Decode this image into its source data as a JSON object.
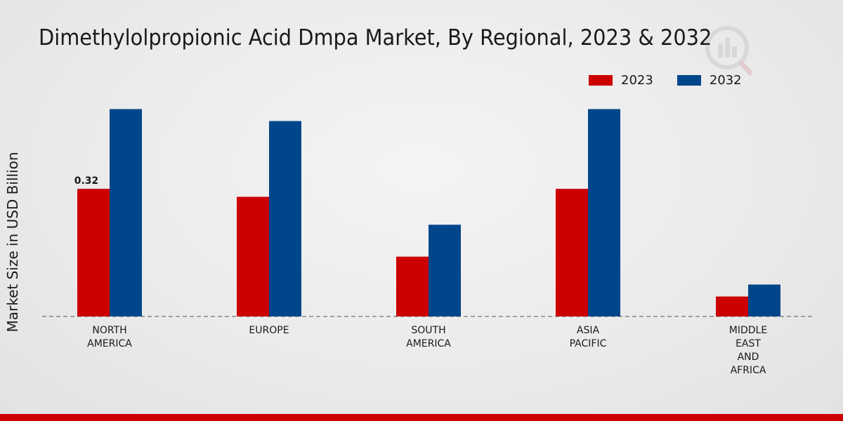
{
  "chart_data": {
    "type": "bar",
    "title": "Dimethylolpropionic Acid Dmpa Market, By Regional, 2023 & 2032",
    "xlabel": "",
    "ylabel": "Market Size in USD Billion",
    "ylim": [
      0,
      0.6
    ],
    "categories": [
      [
        "NORTH",
        "AMERICA"
      ],
      [
        "EUROPE"
      ],
      [
        "SOUTH",
        "AMERICA"
      ],
      [
        "ASIA",
        "PACIFIC"
      ],
      [
        "MIDDLE",
        "EAST",
        "AND",
        "AFRICA"
      ]
    ],
    "series": [
      {
        "name": "2023",
        "color": "#cc0000",
        "values": [
          0.32,
          0.3,
          0.15,
          0.32,
          0.05
        ]
      },
      {
        "name": "2032",
        "color": "#00468b",
        "values": [
          0.52,
          0.49,
          0.23,
          0.52,
          0.08
        ]
      }
    ],
    "data_labels": [
      {
        "series": 0,
        "index": 0,
        "text": "0.32"
      }
    ],
    "legend_position": "top-right",
    "grid": false
  },
  "colors": {
    "accent_bar": "#cc0000"
  }
}
